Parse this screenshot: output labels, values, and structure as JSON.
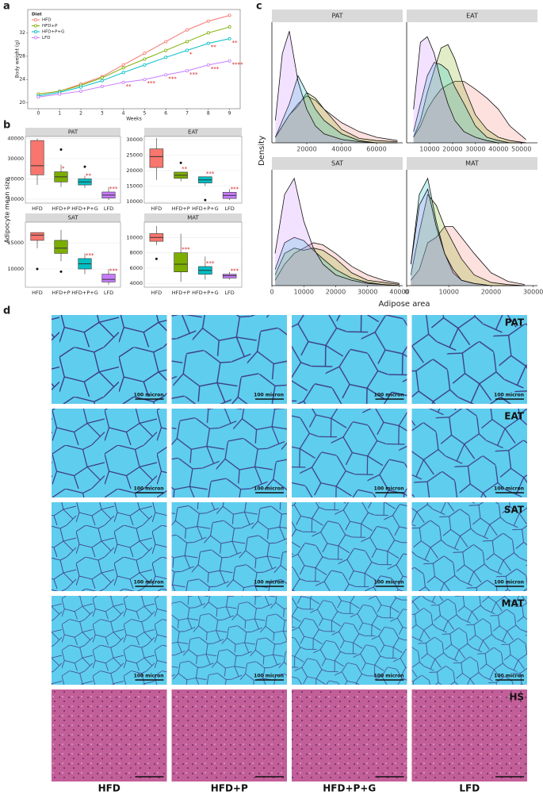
{
  "panel_labels": [
    "a",
    "b",
    "c",
    "d"
  ],
  "chart_data": [
    {
      "type": "line",
      "legend_title": "Diet",
      "xlabel": "Weeks",
      "ylabel": "Body weight (g)",
      "legend": "upper left",
      "x": [
        0,
        1,
        2,
        3,
        4,
        5,
        6,
        7,
        8,
        9
      ],
      "xlim": [
        -0.5,
        9.5
      ],
      "ylim": [
        19,
        36
      ],
      "xticks": [
        0,
        1,
        2,
        3,
        4,
        5,
        6,
        7,
        8,
        9
      ],
      "yticks": [
        20,
        24,
        28,
        32
      ],
      "series": [
        {
          "name": "HFD",
          "color": "#F8766D",
          "values": [
            21.5,
            22,
            23.2,
            24.5,
            26.5,
            28.5,
            30.5,
            32.5,
            34,
            35
          ]
        },
        {
          "name": "HFD+P",
          "color": "#7CAE00",
          "values": [
            21.5,
            22,
            23,
            24.3,
            26,
            27.5,
            29,
            30.5,
            32,
            33
          ]
        },
        {
          "name": "HFD+P+G",
          "color": "#00BFC4",
          "values": [
            21.2,
            21.8,
            22.7,
            23.8,
            25.2,
            26.5,
            27.8,
            29,
            30.2,
            31
          ]
        },
        {
          "name": "LFD",
          "color": "#C77CFF",
          "values": [
            21,
            21.5,
            22,
            22.8,
            23.5,
            24,
            24.8,
            25.5,
            26.5,
            27.2
          ]
        }
      ],
      "annotations": [
        {
          "series": 2,
          "x": 7,
          "label": "*"
        },
        {
          "series": 2,
          "x": 8,
          "label": "**"
        },
        {
          "series": 2,
          "x": 9,
          "label": "**"
        },
        {
          "series": 3,
          "x": 4,
          "label": "**"
        },
        {
          "series": 3,
          "x": 5,
          "label": "***"
        },
        {
          "series": 3,
          "x": 6,
          "label": "***"
        },
        {
          "series": 3,
          "x": 7,
          "label": "***"
        },
        {
          "series": 3,
          "x": 8,
          "label": "***"
        },
        {
          "series": 3,
          "x": 9,
          "label": "****"
        }
      ]
    },
    {
      "type": "box",
      "ylabel": "Adipocyte mean size",
      "categories": [
        "HFD",
        "HFD+P",
        "HFD+P+G",
        "LFD"
      ],
      "colors": [
        "#F8766D",
        "#7CAE00",
        "#00BFC4",
        "#C77CFF"
      ],
      "panels": [
        {
          "title": "PAT",
          "ylim": [
            8000,
            41000
          ],
          "yticks": [
            10000,
            20000,
            30000,
            40000
          ],
          "boxes": [
            {
              "whislo": 17000,
              "q1": 22000,
              "med": 26500,
              "q3": 39000,
              "whishi": 40000,
              "fliers": []
            },
            {
              "whislo": 16000,
              "q1": 18500,
              "med": 21000,
              "q3": 23500,
              "whishi": 27000,
              "fliers": [
                34500
              ]
            },
            {
              "whislo": 15500,
              "q1": 17000,
              "med": 18500,
              "q3": 20000,
              "whishi": 21500,
              "fliers": [
                26000
              ]
            },
            {
              "whislo": 9500,
              "q1": 10500,
              "med": 12000,
              "q3": 13500,
              "whishi": 16000,
              "fliers": []
            }
          ],
          "sig": [
            null,
            "*",
            "**",
            "***"
          ]
        },
        {
          "title": "EAT",
          "ylim": [
            9500,
            31000
          ],
          "yticks": [
            10000,
            15000,
            20000,
            25000,
            30000
          ],
          "boxes": [
            {
              "whislo": 17000,
              "q1": 21000,
              "med": 24500,
              "q3": 27000,
              "whishi": 30500,
              "fliers": []
            },
            {
              "whislo": 16500,
              "q1": 17500,
              "med": 18500,
              "q3": 19500,
              "whishi": 19500,
              "fliers": [
                22500
              ]
            },
            {
              "whislo": 15000,
              "q1": 16000,
              "med": 17000,
              "q3": 18000,
              "whishi": 18000,
              "fliers": [
                10500
              ]
            },
            {
              "whislo": 10500,
              "q1": 11000,
              "med": 12000,
              "q3": 13000,
              "whishi": 14000,
              "fliers": []
            }
          ],
          "sig": [
            null,
            "**",
            "***",
            "***"
          ]
        },
        {
          "title": "SAT",
          "ylim": [
            6500,
            19000
          ],
          "yticks": [
            10000,
            15000
          ],
          "boxes": [
            {
              "whislo": 14000,
              "q1": 15500,
              "med": 16500,
              "q3": 17000,
              "whishi": 17000,
              "fliers": [
                10000
              ]
            },
            {
              "whislo": 11500,
              "q1": 13000,
              "med": 14000,
              "q3": 15500,
              "whishi": 17500,
              "fliers": [
                9500
              ]
            },
            {
              "whislo": 9000,
              "q1": 10000,
              "med": 11000,
              "q3": 12000,
              "whishi": 13000,
              "fliers": []
            },
            {
              "whislo": 7000,
              "q1": 7500,
              "med": 8000,
              "q3": 9000,
              "whishi": 10000,
              "fliers": []
            }
          ],
          "sig": [
            null,
            null,
            "***",
            "***"
          ]
        },
        {
          "title": "MAT",
          "ylim": [
            3500,
            12000
          ],
          "yticks": [
            4000,
            6000,
            8000,
            10000
          ],
          "boxes": [
            {
              "whislo": 9000,
              "q1": 9500,
              "med": 10000,
              "q3": 10500,
              "whishi": 11500,
              "fliers": [
                7200
              ]
            },
            {
              "whislo": 4200,
              "q1": 5500,
              "med": 6500,
              "q3": 8000,
              "whishi": 10500,
              "fliers": []
            },
            {
              "whislo": 4500,
              "q1": 5200,
              "med": 5700,
              "q3": 6200,
              "whishi": 7500,
              "fliers": []
            },
            {
              "whislo": 4500,
              "q1": 4700,
              "med": 5000,
              "q3": 5200,
              "whishi": 5500,
              "fliers": []
            }
          ],
          "sig": [
            null,
            "***",
            "***",
            "***"
          ]
        }
      ]
    },
    {
      "type": "density",
      "xlabel": "Adipose area",
      "ylabel": "Density",
      "colors": [
        "#F8766D",
        "#7CAE00",
        "#00BFC4",
        "#C77CFF"
      ],
      "panels": [
        {
          "title": "PAT",
          "xlim": [
            0,
            75000
          ],
          "ylim": [
            0,
            1.08
          ],
          "xticks": [
            20000,
            40000,
            60000
          ],
          "x": [
            2000,
            6000,
            10000,
            15000,
            20000,
            25000,
            30000,
            40000,
            50000,
            60000,
            72000
          ],
          "series": [
            {
              "values": [
                0.05,
                0.15,
                0.25,
                0.35,
                0.42,
                0.38,
                0.3,
                0.18,
                0.1,
                0.05,
                0.02
              ]
            },
            {
              "values": [
                0.05,
                0.15,
                0.25,
                0.33,
                0.45,
                0.4,
                0.3,
                0.12,
                0.04,
                0.02,
                0.01
              ]
            },
            {
              "values": [
                0.05,
                0.2,
                0.35,
                0.6,
                0.45,
                0.3,
                0.2,
                0.08,
                0.02,
                0,
                0
              ]
            },
            {
              "values": [
                0.2,
                0.8,
                1.0,
                0.55,
                0.3,
                0.15,
                0.08,
                0.03,
                0.01,
                0,
                0
              ]
            }
          ]
        },
        {
          "title": "EAT",
          "xlim": [
            0,
            57000
          ],
          "ylim": [
            0,
            1.08
          ],
          "xticks": [
            10000,
            20000,
            30000,
            40000,
            50000
          ],
          "x": [
            3000,
            6000,
            9000,
            12000,
            15000,
            18000,
            21000,
            25000,
            30000,
            35000,
            40000,
            45000,
            52000
          ],
          "series": [
            {
              "values": [
                0.05,
                0.15,
                0.3,
                0.4,
                0.48,
                0.52,
                0.55,
                0.55,
                0.48,
                0.4,
                0.3,
                0.15,
                0.03
              ]
            },
            {
              "values": [
                0.05,
                0.2,
                0.45,
                0.65,
                0.85,
                0.88,
                0.75,
                0.5,
                0.25,
                0.12,
                0.05,
                0.02,
                0
              ]
            },
            {
              "values": [
                0.1,
                0.35,
                0.6,
                0.72,
                0.7,
                0.65,
                0.5,
                0.35,
                0.15,
                0.05,
                0.02,
                0,
                0
              ]
            },
            {
              "values": [
                0.3,
                0.9,
                0.95,
                0.8,
                0.55,
                0.35,
                0.2,
                0.1,
                0.05,
                0.02,
                0,
                0,
                0
              ]
            }
          ]
        },
        {
          "title": "SAT",
          "xlim": [
            0,
            41000
          ],
          "ylim": [
            0,
            1.08
          ],
          "xticks": [
            0,
            10000,
            20000,
            30000,
            40000
          ],
          "x": [
            1000,
            4000,
            7000,
            10000,
            13000,
            16000,
            20000,
            25000,
            30000,
            35000,
            40000
          ],
          "series": [
            {
              "values": [
                0.05,
                0.2,
                0.3,
                0.35,
                0.4,
                0.38,
                0.3,
                0.18,
                0.1,
                0.05,
                0.02
              ]
            },
            {
              "values": [
                0.1,
                0.3,
                0.35,
                0.33,
                0.35,
                0.33,
                0.25,
                0.12,
                0.05,
                0.03,
                0.01
              ]
            },
            {
              "values": [
                0.15,
                0.4,
                0.45,
                0.42,
                0.33,
                0.25,
                0.15,
                0.07,
                0.03,
                0.01,
                0
              ]
            },
            {
              "values": [
                0.3,
                0.85,
                1.0,
                0.6,
                0.35,
                0.2,
                0.1,
                0.05,
                0.02,
                0.01,
                0
              ]
            }
          ]
        },
        {
          "title": "MAT",
          "xlim": [
            0,
            31000
          ],
          "ylim": [
            0,
            1.08
          ],
          "xticks": [
            0,
            10000,
            20000,
            30000
          ],
          "x": [
            1000,
            3000,
            5000,
            7000,
            9000,
            11000,
            13000,
            16000,
            20000,
            24000,
            28000
          ],
          "series": [
            {
              "values": [
                0.05,
                0.15,
                0.4,
                0.45,
                0.55,
                0.55,
                0.45,
                0.3,
                0.12,
                0.04,
                0.01
              ]
            },
            {
              "values": [
                0.1,
                0.5,
                0.85,
                0.75,
                0.55,
                0.4,
                0.25,
                0.1,
                0.03,
                0.01,
                0
              ]
            },
            {
              "values": [
                0.2,
                0.85,
                1.0,
                0.6,
                0.3,
                0.12,
                0.05,
                0.02,
                0,
                0,
                0
              ]
            },
            {
              "values": [
                0.2,
                0.75,
                0.9,
                0.55,
                0.3,
                0.15,
                0.05,
                0.02,
                0,
                0,
                0
              ]
            }
          ]
        }
      ]
    }
  ],
  "micrographs": {
    "rows": [
      "PAT",
      "EAT",
      "SAT",
      "MAT",
      "HS"
    ],
    "columns": [
      "HFD",
      "HFD+P",
      "HFD+P+G",
      "LFD"
    ],
    "scale_bar": "100 micron"
  }
}
